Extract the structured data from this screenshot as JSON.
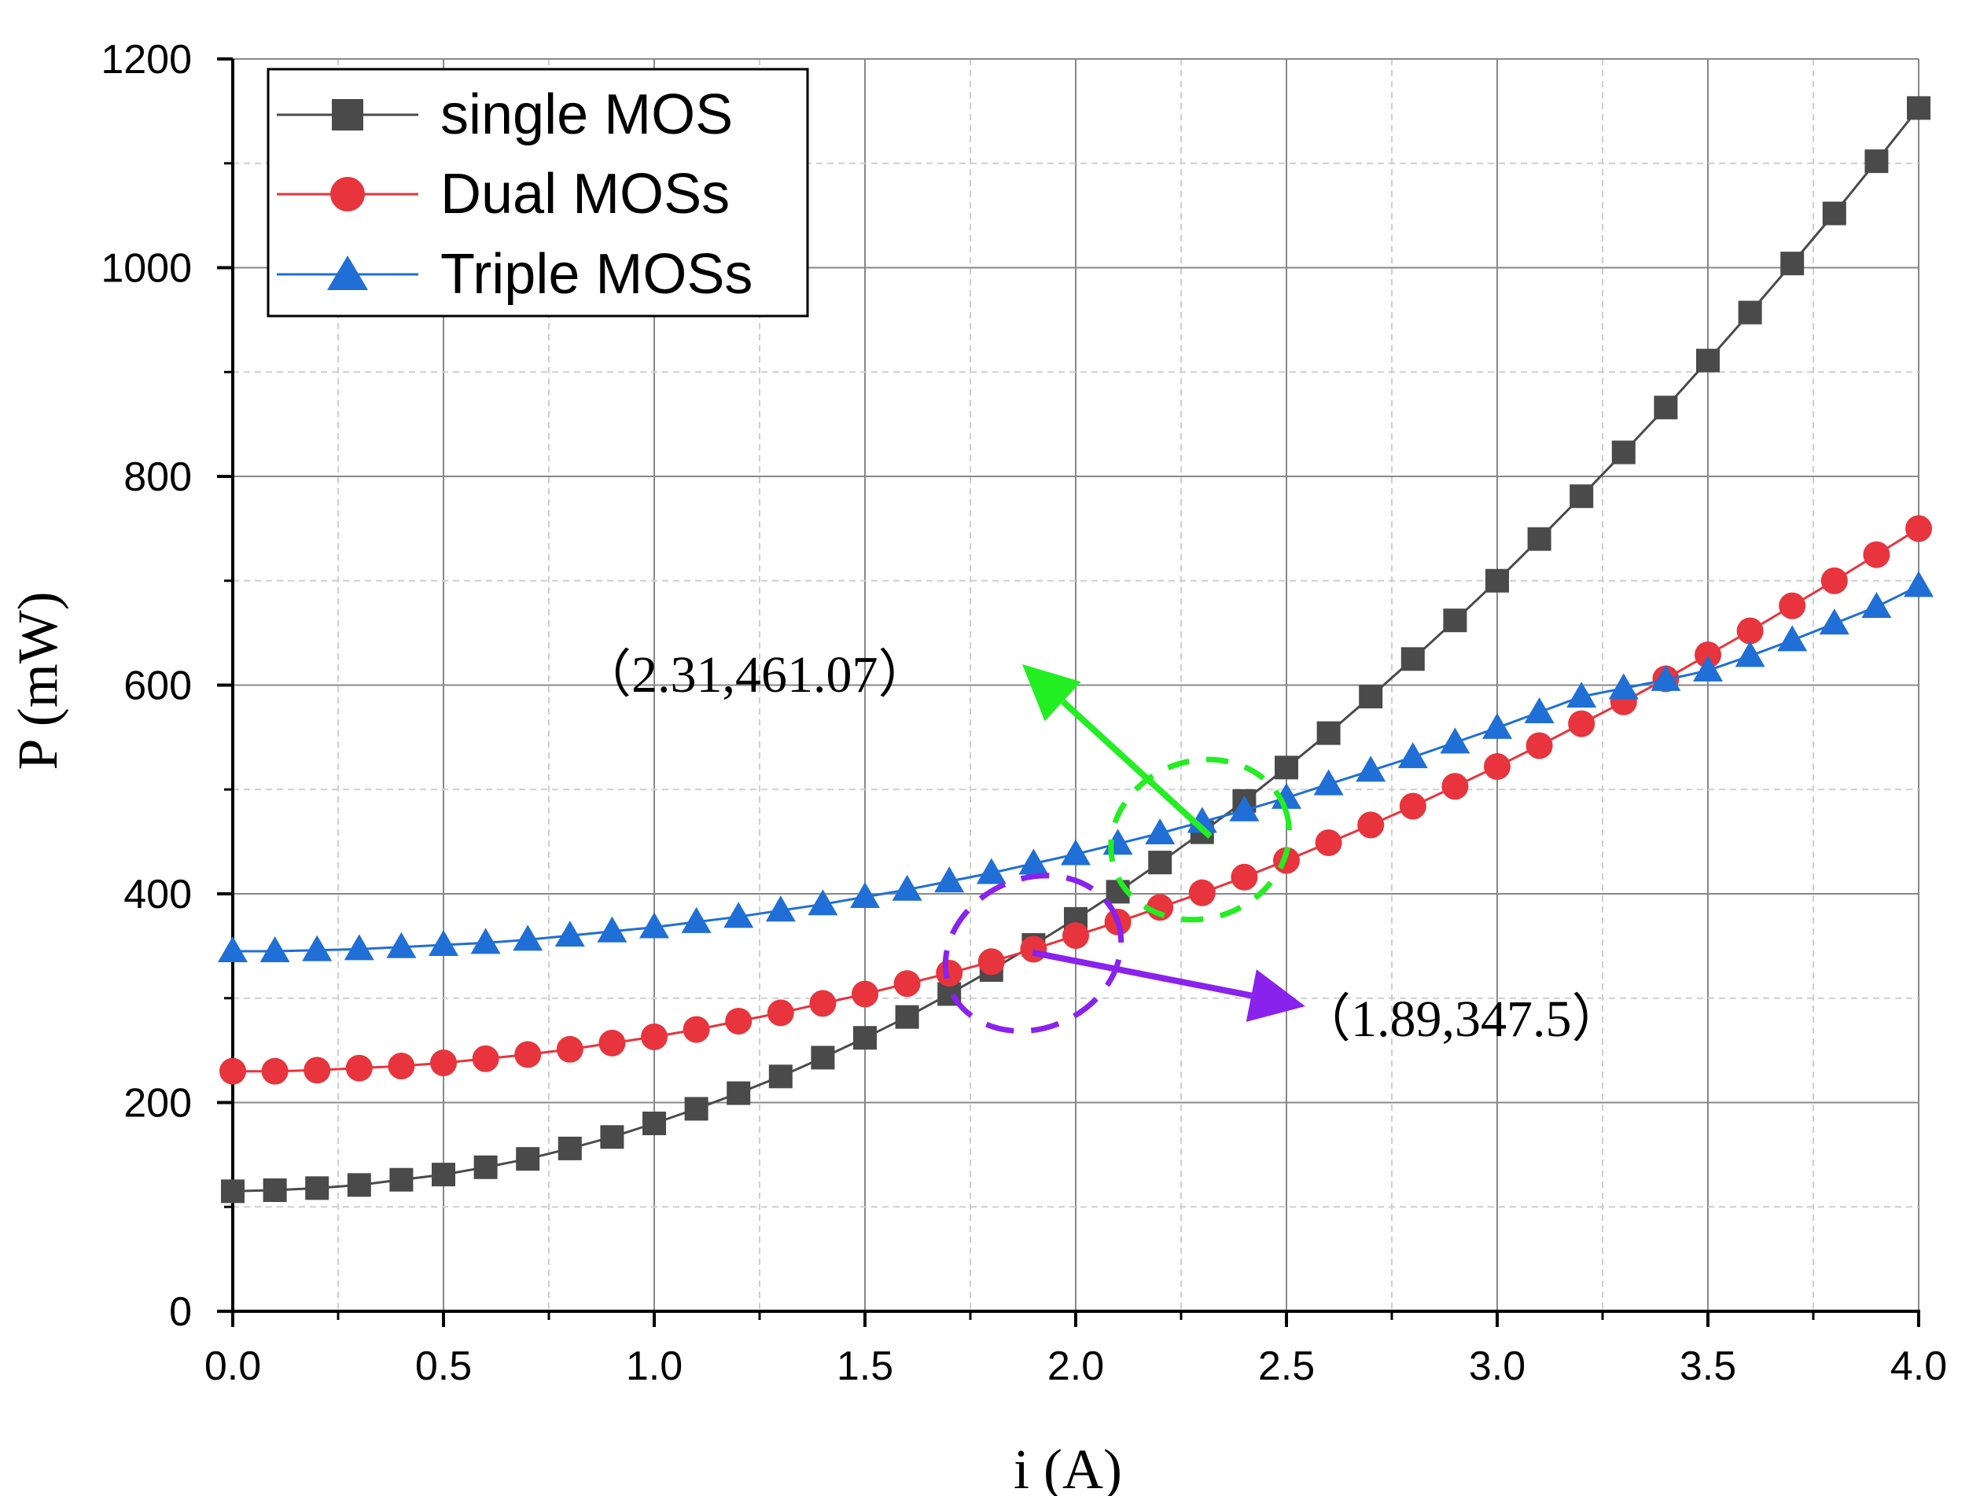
{
  "chart_data": {
    "type": "line",
    "title": "",
    "xlabel": "i (A)",
    "ylabel": "P (mW)",
    "xlim": [
      0,
      4
    ],
    "ylim": [
      0,
      1200
    ],
    "xticks": [
      "0.0",
      "0.5",
      "1.0",
      "1.5",
      "2.0",
      "2.5",
      "3.0",
      "3.5",
      "4.0"
    ],
    "yticks": [
      "0",
      "200",
      "400",
      "600",
      "800",
      "1000",
      "1200"
    ],
    "grid": true,
    "legend_position": "top-left",
    "x": [
      0.0,
      0.1,
      0.2,
      0.3,
      0.4,
      0.5,
      0.6,
      0.7,
      0.8,
      0.9,
      1.0,
      1.1,
      1.2,
      1.3,
      1.4,
      1.5,
      1.6,
      1.7,
      1.8,
      1.9,
      2.0,
      2.1,
      2.2,
      2.3,
      2.4,
      2.5,
      2.6,
      2.7,
      2.8,
      2.9,
      3.0,
      3.1,
      3.2,
      3.3,
      3.4,
      3.5,
      3.6,
      3.7,
      3.8,
      3.9,
      4.0
    ],
    "series": [
      {
        "name": "single MOS",
        "color": "#4a4a4a",
        "marker": "square",
        "values": [
          115,
          116,
          118,
          121,
          126,
          131,
          138,
          146,
          156,
          167,
          180,
          194,
          209,
          225,
          243,
          262,
          282,
          304,
          327,
          351,
          376,
          402,
          430,
          459,
          489,
          521,
          554,
          589,
          625,
          662,
          700,
          740,
          781,
          823,
          866,
          911,
          957,
          1004,
          1052,
          1102,
          1153
        ]
      },
      {
        "name": "Dual MOSs",
        "color": "#e8343c",
        "marker": "circle",
        "values": [
          230,
          230,
          231,
          233,
          235,
          238,
          242,
          246,
          251,
          257,
          263,
          270,
          278,
          286,
          295,
          304,
          314,
          324,
          335,
          347,
          360,
          373,
          387,
          401,
          416,
          432,
          449,
          466,
          484,
          503,
          522,
          542,
          563,
          584,
          606,
          629,
          652,
          676,
          700,
          725,
          750
        ]
      },
      {
        "name": "Triple MOSs",
        "color": "#1f6fd6",
        "marker": "triangle",
        "values": [
          345,
          345,
          346,
          347,
          349,
          351,
          353,
          356,
          360,
          364,
          368,
          373,
          378,
          384,
          390,
          397,
          404,
          412,
          420,
          429,
          438,
          448,
          458,
          469,
          480,
          492,
          505,
          518,
          531,
          545,
          559,
          574,
          589,
          597,
          605,
          614,
          628,
          643,
          659,
          675,
          695
        ]
      }
    ],
    "annotations": [
      {
        "text": "（2.31,461.07）",
        "x": 2.31,
        "y": 461.07,
        "color": "#22ee22"
      },
      {
        "text": "（1.89,347.5）",
        "x": 1.89,
        "y": 347.5,
        "color": "#8a22ee"
      }
    ]
  }
}
